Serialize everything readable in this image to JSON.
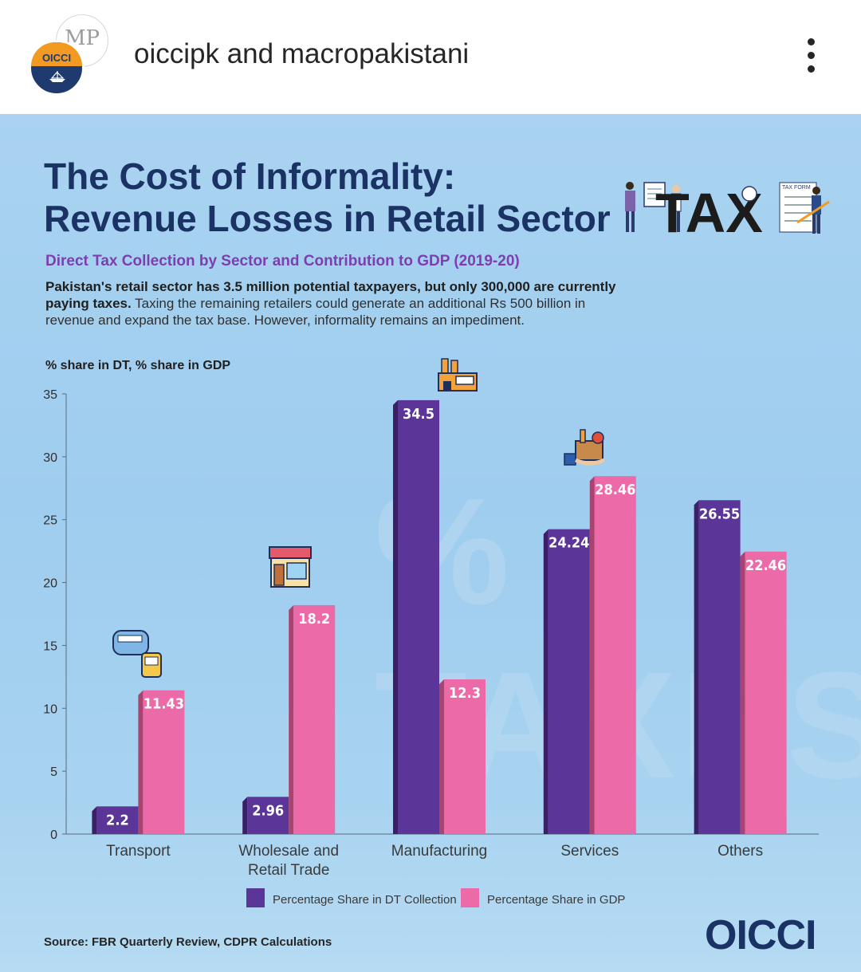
{
  "header": {
    "account_text": "oiccipk and macropakistani",
    "avatar_text": "OICCI",
    "avatar2_text": "MP",
    "more_icon": "more-vertical-icon"
  },
  "post": {
    "title_line1": "The Cost of Informality:",
    "title_line2": "Revenue Losses in Retail Sector",
    "tax_art_text": "TAX",
    "tax_form_label": "TAX FORM",
    "subtitle": "Direct Tax Collection by Sector and Contribution to GDP (2019-20)",
    "desc_bold": "Pakistan's retail sector has 3.5 million potential taxpayers, but only 300,000 are currently paying taxes.",
    "desc_rest": " Taxing the remaining retailers could generate an additional Rs 500 billion in revenue and expand the tax base. However, informality remains an impediment.",
    "axis_title": "% share in DT, % share in GDP",
    "background_word": "% TAXES",
    "source": "Source: FBR Quarterly Review, CDPR Calculations",
    "logo_text": "OICCI"
  },
  "chart_data": {
    "type": "bar",
    "categories": [
      "Transport",
      "Wholesale and Retail Trade",
      "Manufacturing",
      "Services",
      "Others"
    ],
    "category_lines": [
      [
        "Transport"
      ],
      [
        "Wholesale and",
        "Retail Trade"
      ],
      [
        "Manufacturing"
      ],
      [
        "Services"
      ],
      [
        "Others"
      ]
    ],
    "series": [
      {
        "name": "Percentage Share in DT Collection",
        "values": [
          2.2,
          2.96,
          34.5,
          24.24,
          26.55
        ],
        "labels": [
          "2.2",
          "2.96",
          "34.5",
          "24.24",
          "26.55"
        ],
        "color": "#5b3597"
      },
      {
        "name": "Percentage Share in GDP",
        "values": [
          11.43,
          18.2,
          12.3,
          28.46,
          22.46
        ],
        "labels": [
          "11.43",
          "18.2",
          "12.3",
          "28.46",
          "22.46"
        ],
        "color": "#ec6aa7"
      }
    ],
    "ylim": [
      0,
      35
    ],
    "yticks": [
      0,
      5,
      10,
      15,
      20,
      25,
      30,
      35
    ],
    "grid": false,
    "legend": "bottom",
    "category_icons": [
      "train-bus-icon",
      "shop-icon",
      "factory-icon",
      "services-icon",
      ""
    ]
  },
  "colors": {
    "title": "#1b3264",
    "subtitle": "#7e3eb0",
    "dt_bar": "#5b3597",
    "gdp_bar": "#ec6aa7",
    "background": "#a9d3f0"
  }
}
